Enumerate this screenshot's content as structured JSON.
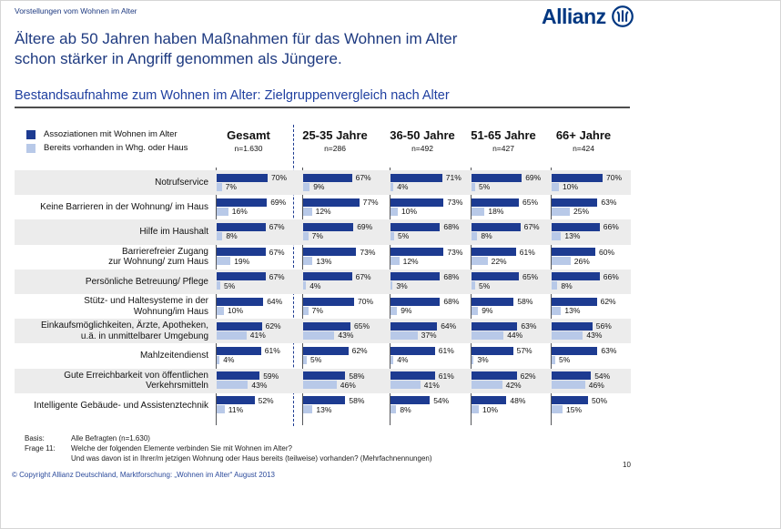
{
  "breadcrumb": "Vorstellungen vom Wohnen im Alter",
  "brand": "Allianz",
  "title": [
    "Ältere ab 50 Jahren haben Maßnahmen für das Wohnen im Alter",
    "schon stärker in Angriff genommen als Jüngere."
  ],
  "subtitle": "Bestandsaufnahme zum Wohnen im Alter: Zielgruppenvergleich nach Alter",
  "chart_data": {
    "type": "bar",
    "orientation": "horizontal",
    "unit": "%",
    "value_suffix": "%",
    "legend_position": "top-left",
    "legend": [
      {
        "label": "Assoziationen mit Wohnen im Alter",
        "color": "#1d3b91"
      },
      {
        "label": "Bereits vorhanden in Whg. oder Haus",
        "color": "#b8c9e8"
      }
    ],
    "columns": [
      {
        "label": "Gesamt",
        "n": "n=1.630"
      },
      {
        "label": "25-35 Jahre",
        "n": "n=286"
      },
      {
        "label": "36-50 Jahre",
        "n": "n=492"
      },
      {
        "label": "51-65 Jahre",
        "n": "n=427"
      },
      {
        "label": "66+ Jahre",
        "n": "n=424"
      }
    ],
    "rows": [
      {
        "label": [
          "Notrufservice"
        ],
        "assoziationen": [
          70,
          67,
          71,
          69,
          70
        ],
        "vorhanden": [
          7,
          9,
          4,
          5,
          10
        ]
      },
      {
        "label": [
          "Keine Barrieren in der Wohnung/ im Haus"
        ],
        "assoziationen": [
          69,
          77,
          73,
          65,
          63
        ],
        "vorhanden": [
          16,
          12,
          10,
          18,
          25
        ]
      },
      {
        "label": [
          "Hilfe im Haushalt"
        ],
        "assoziationen": [
          67,
          69,
          68,
          67,
          66
        ],
        "vorhanden": [
          8,
          7,
          5,
          8,
          13
        ]
      },
      {
        "label": [
          "Barrierefreier Zugang",
          "zur Wohnung/ zum Haus"
        ],
        "assoziationen": [
          67,
          73,
          73,
          61,
          60
        ],
        "vorhanden": [
          19,
          13,
          12,
          22,
          26
        ]
      },
      {
        "label": [
          "Persönliche Betreuung/ Pflege"
        ],
        "assoziationen": [
          67,
          67,
          68,
          65,
          66
        ],
        "vorhanden": [
          5,
          4,
          3,
          5,
          8
        ]
      },
      {
        "label": [
          "Stütz- und Haltesysteme in der",
          "Wohnung/im Haus"
        ],
        "assoziationen": [
          64,
          70,
          68,
          58,
          62
        ],
        "vorhanden": [
          10,
          7,
          9,
          9,
          13
        ]
      },
      {
        "label": [
          "Einkaufsmöglichkeiten, Ärzte, Apotheken,",
          "u.ä. in unmittelbarer Umgebung"
        ],
        "assoziationen": [
          62,
          65,
          64,
          63,
          56
        ],
        "vorhanden": [
          41,
          43,
          37,
          44,
          43
        ]
      },
      {
        "label": [
          "Mahlzeitendienst"
        ],
        "assoziationen": [
          61,
          62,
          61,
          57,
          63
        ],
        "vorhanden": [
          4,
          5,
          4,
          3,
          5
        ]
      },
      {
        "label": [
          "Gute Erreichbarkeit von öffentlichen",
          "Verkehrsmitteln"
        ],
        "assoziationen": [
          59,
          58,
          61,
          62,
          54
        ],
        "vorhanden": [
          43,
          46,
          41,
          42,
          46
        ]
      },
      {
        "label": [
          "Intelligente Gebäude- und Assistenztechnik"
        ],
        "assoziationen": [
          52,
          58,
          54,
          48,
          50
        ],
        "vorhanden": [
          11,
          13,
          8,
          10,
          15
        ]
      }
    ]
  },
  "footer": {
    "basis_label": "Basis:",
    "basis_text": "Alle Befragten (n=1.630)",
    "frage_label": "Frage 11:",
    "frage_text1": "Welche der folgenden Elemente verbinden Sie mit Wohnen im Alter?",
    "frage_text2": "Und was davon ist in Ihrer/m jetzigen Wohnung oder Haus bereits (teilweise) vorhanden? (Mehrfachnennungen)",
    "copyright": "© Copyright Allianz Deutschland, Marktforschung: „Wohnen im Alter“ August 2013",
    "page_number": "10"
  },
  "colors": {
    "brand_blue": "#003781",
    "bar_primary": "#1d3b91",
    "bar_secondary": "#b8c9e8",
    "row_band": "#ececec",
    "title_text": "#1e3a80"
  }
}
